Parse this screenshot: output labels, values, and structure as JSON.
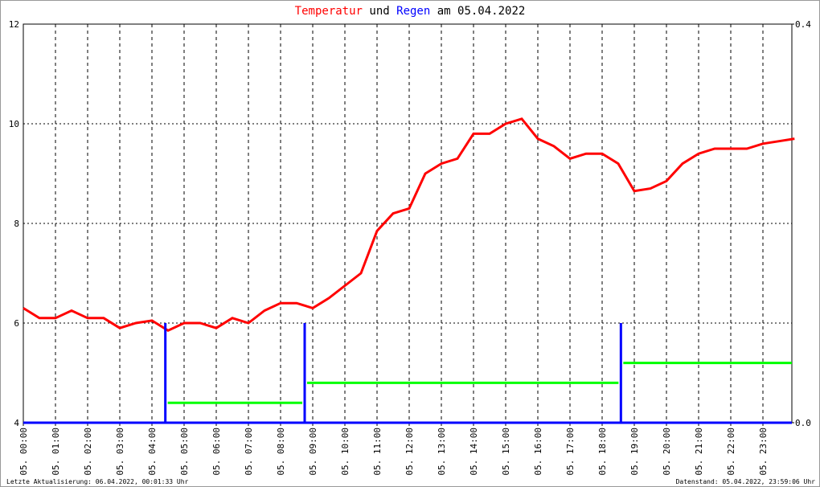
{
  "chart_data": {
    "type": "line",
    "title": [
      "Temperatur",
      "und",
      "Regen",
      "am 05.04.2022"
    ],
    "xticks": [
      "05. 00:00",
      "05. 01:00",
      "05. 02:00",
      "05. 03:00",
      "05. 04:00",
      "05. 05:00",
      "05. 06:00",
      "05. 07:00",
      "05. 08:00",
      "05. 09:00",
      "05. 10:00",
      "05. 11:00",
      "05. 12:00",
      "05. 13:00",
      "05. 14:00",
      "05. 15:00",
      "05. 16:00",
      "05. 17:00",
      "05. 18:00",
      "05. 19:00",
      "05. 20:00",
      "05. 21:00",
      "05. 22:00",
      "05. 23:00"
    ],
    "ylim": [
      4,
      12
    ],
    "yticks": [
      4,
      6,
      8,
      10,
      12
    ],
    "y2lim": [
      0,
      0.4
    ],
    "y2ticks": [
      {
        "value": 0,
        "label": "0.0"
      },
      {
        "value": 0.4,
        "label": "0.4"
      }
    ],
    "grid": true,
    "series": [
      {
        "name": "Temperatur",
        "type": "line",
        "color": "#ff0000",
        "x": [
          "05. 00:00",
          "05. 00:30",
          "05. 01:00",
          "05. 01:30",
          "05. 02:00",
          "05. 02:30",
          "05. 03:00",
          "05. 03:30",
          "05. 04:00",
          "05. 04:30",
          "05. 05:00",
          "05. 05:30",
          "05. 06:00",
          "05. 06:30",
          "05. 07:00",
          "05. 07:30",
          "05. 08:00",
          "05. 08:30",
          "05. 09:00",
          "05. 09:30",
          "05. 10:00",
          "05. 10:30",
          "05. 11:00",
          "05. 11:30",
          "05. 12:00",
          "05. 12:30",
          "05. 13:00",
          "05. 13:30",
          "05. 14:00",
          "05. 14:30",
          "05. 15:00",
          "05. 15:30",
          "05. 16:00",
          "05. 16:30",
          "05. 17:00",
          "05. 17:30",
          "05. 18:00",
          "05. 18:30",
          "05. 19:00",
          "05. 19:30",
          "05. 20:00",
          "05. 20:30",
          "05. 21:00",
          "05. 21:30",
          "05. 22:00",
          "05. 22:30",
          "05. 23:00",
          "05. 23:30",
          "05. 23:59"
        ],
        "values": [
          6.3,
          6.1,
          6.1,
          6.25,
          6.1,
          6.1,
          5.9,
          6.0,
          6.05,
          5.85,
          6.0,
          6.0,
          5.9,
          6.1,
          6.0,
          6.25,
          6.4,
          6.4,
          6.3,
          6.5,
          6.75,
          7.0,
          7.85,
          8.2,
          8.3,
          9.0,
          9.2,
          9.3,
          9.8,
          9.8,
          10.0,
          10.1,
          9.7,
          9.55,
          9.3,
          9.4,
          9.4,
          9.2,
          8.65,
          8.7,
          8.85,
          9.2,
          9.4,
          9.5,
          9.5,
          9.5,
          9.6,
          9.65,
          9.7
        ]
      },
      {
        "name": "Regen",
        "type": "bar",
        "axis": "y2",
        "color": "#0000ff",
        "x": [
          "05. 04:25",
          "05. 08:45",
          "05. 18:35"
        ],
        "values": [
          0.1,
          0.1,
          0.1
        ]
      },
      {
        "type": "step",
        "axis": "y2",
        "color": "#00ff00",
        "x": [
          "05. 04:25",
          "05. 08:45",
          "05. 18:35"
        ],
        "values": [
          0.02,
          0.04,
          0.06
        ]
      }
    ],
    "footer_left": "Letzte Aktualisierung: 06.04.2022, 00:01:33 Uhr",
    "footer_right": "Datenstand: 05.04.2022, 23:59:06 Uhr"
  }
}
